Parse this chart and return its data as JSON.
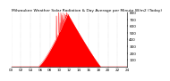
{
  "title": "Milwaukee Weather Solar Radiation & Day Average per Minute W/m2 (Today)",
  "background_color": "#ffffff",
  "plot_bg_color": "#ffffff",
  "bar_color": "#ff0000",
  "ylim": [
    0,
    800
  ],
  "xlim": [
    0,
    1440
  ],
  "ytick_values": [
    100,
    200,
    300,
    400,
    500,
    600,
    700,
    800
  ],
  "grid_color": "#bbbbbb",
  "title_fontsize": 3.2,
  "tick_fontsize": 3.0,
  "sunrise_min": 330,
  "sunset_min": 1110,
  "peak_min": 700,
  "peak_val": 780,
  "spikes": [
    [
      560,
      750
    ],
    [
      575,
      400
    ],
    [
      590,
      800
    ],
    [
      605,
      650
    ],
    [
      615,
      800
    ],
    [
      625,
      780
    ],
    [
      635,
      760
    ],
    [
      645,
      800
    ],
    [
      655,
      700
    ],
    [
      665,
      780
    ],
    [
      675,
      760
    ],
    [
      685,
      800
    ]
  ]
}
